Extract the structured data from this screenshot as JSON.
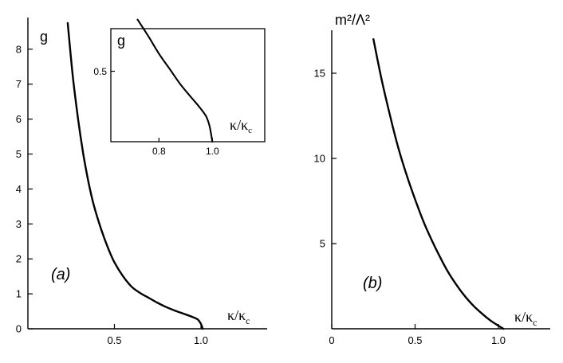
{
  "chart_data": [
    {
      "type": "line",
      "panel_label": "(a)",
      "ylabel": "g",
      "xlabel": "κ/κ",
      "xlabel_sub": "c",
      "xlim": [
        0,
        1.4
      ],
      "ylim": [
        0,
        8.8
      ],
      "xticks": [
        0.5,
        1.0
      ],
      "xtick_labels": [
        "0.5",
        "1.0"
      ],
      "yticks": [
        0,
        1,
        2,
        3,
        4,
        5,
        6,
        7,
        8
      ],
      "ytick_labels": [
        "0",
        "1",
        "2",
        "3",
        "4",
        "5",
        "6",
        "7",
        "8"
      ],
      "grid": false,
      "series": [
        {
          "x": [
            0.23,
            0.26,
            0.29,
            0.32,
            0.35,
            0.38,
            0.42,
            0.46,
            0.5,
            0.55,
            0.6,
            0.65,
            0.7,
            0.75,
            0.8,
            0.85,
            0.9,
            0.95,
            0.98,
            1.0,
            1.01
          ],
          "y": [
            8.75,
            7.2,
            6.0,
            5.0,
            4.2,
            3.55,
            2.9,
            2.35,
            1.9,
            1.5,
            1.2,
            1.02,
            0.88,
            0.74,
            0.62,
            0.52,
            0.43,
            0.34,
            0.27,
            0.14,
            0.0
          ]
        }
      ],
      "inset": {
        "ylabel": "g",
        "xlabel": "κ/κ",
        "xlabel_sub": "c",
        "xlim": [
          0.62,
          1.14
        ],
        "ylim": [
          0.2,
          0.72
        ],
        "xticks": [
          0.8,
          1.0
        ],
        "xtick_labels": [
          "0.8",
          "1.0"
        ],
        "yticks": [
          0.5
        ],
        "ytick_labels": [
          "0.5"
        ],
        "series": [
          {
            "x": [
              0.72,
              0.76,
              0.8,
              0.84,
              0.88,
              0.92,
              0.95,
              0.97,
              0.98,
              0.99,
              1.0
            ],
            "y": [
              0.72,
              0.65,
              0.575,
              0.51,
              0.445,
              0.39,
              0.35,
              0.32,
              0.3,
              0.265,
              0.2
            ]
          }
        ]
      }
    },
    {
      "type": "line",
      "panel_label": "(b)",
      "ylabel": "m²/Λ²",
      "xlabel": "κ/κ",
      "xlabel_sub": "c",
      "xlim": [
        0,
        1.35
      ],
      "ylim": [
        0,
        18
      ],
      "xticks": [
        0,
        0.5,
        1.0
      ],
      "xtick_labels": [
        "0",
        "0.5",
        "1.0"
      ],
      "yticks": [
        5,
        10,
        15
      ],
      "ytick_labels": [
        "5",
        "10",
        "15"
      ],
      "grid": false,
      "series": [
        {
          "x": [
            0.25,
            0.3,
            0.35,
            0.4,
            0.45,
            0.5,
            0.55,
            0.6,
            0.65,
            0.7,
            0.75,
            0.8,
            0.85,
            0.9,
            0.95,
            1.0,
            1.03
          ],
          "y": [
            17.0,
            14.6,
            12.5,
            10.6,
            9.0,
            7.6,
            6.3,
            5.2,
            4.2,
            3.3,
            2.55,
            1.9,
            1.35,
            0.9,
            0.5,
            0.18,
            0.0
          ]
        }
      ]
    }
  ]
}
